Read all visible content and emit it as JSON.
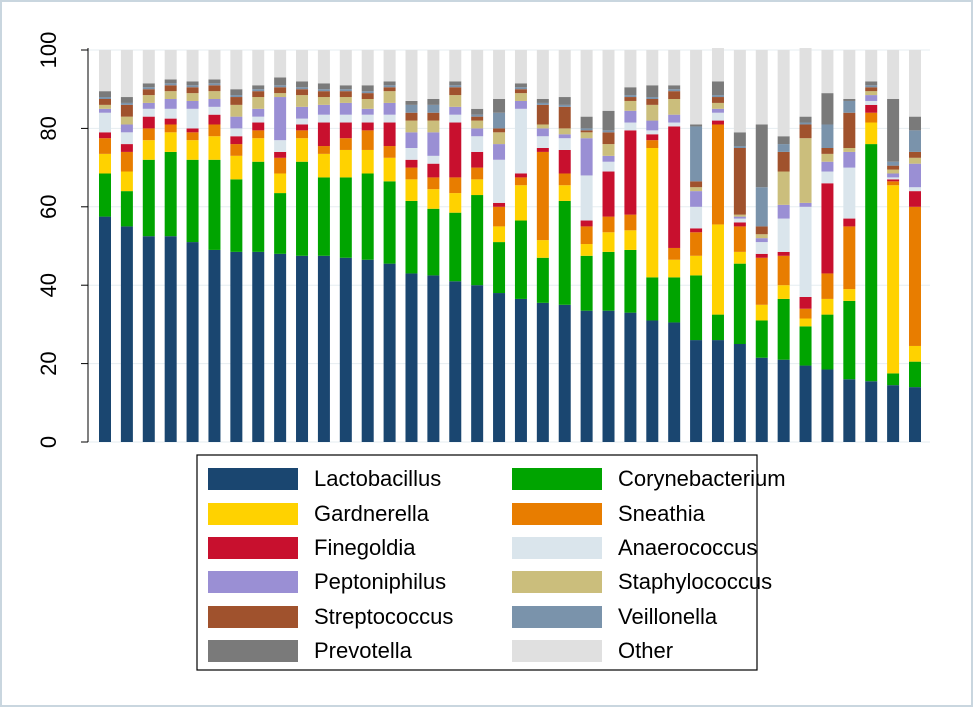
{
  "chart_data": {
    "type": "stacked_bar",
    "ylim": [
      0,
      100
    ],
    "yticks": [
      0,
      20,
      40,
      60,
      80,
      100
    ],
    "grid": true,
    "categories": [
      null,
      null,
      null,
      null,
      null,
      null,
      null,
      null,
      null,
      null,
      null,
      null,
      null,
      null,
      null,
      null,
      null,
      null,
      null,
      null,
      null,
      null,
      null,
      null,
      null,
      null,
      null,
      null,
      null,
      null,
      null,
      null,
      null,
      null,
      null,
      null,
      null,
      null
    ],
    "series": [
      {
        "name": "Lactobacillus",
        "color": "#1a4670",
        "values": [
          57.5,
          55,
          52.5,
          52.5,
          51,
          49,
          48.5,
          48.5,
          48,
          47.5,
          47.5,
          47,
          46.5,
          45.5,
          43,
          42.5,
          41,
          40,
          38,
          36.5,
          35.5,
          35,
          33.5,
          33.5,
          33,
          31,
          30.5,
          26,
          26,
          25,
          21.5,
          21,
          19.5,
          18.5,
          16,
          15.5,
          14.5,
          14
        ]
      },
      {
        "name": "Corynebacterium",
        "color": "#00a400",
        "values": [
          11,
          9,
          19.5,
          21.5,
          21,
          23,
          18.5,
          23,
          15.5,
          24,
          20,
          20.5,
          22,
          21,
          18.5,
          17,
          17.5,
          23,
          13,
          20,
          11.5,
          26.5,
          14,
          15,
          16,
          11,
          11.5,
          16.5,
          6.5,
          20.5,
          9.5,
          15.5,
          10,
          14,
          20,
          60.5,
          3,
          6.5
        ]
      },
      {
        "name": "Gardnerella",
        "color": "#ffd200",
        "values": [
          5,
          5,
          5,
          5,
          5,
          6,
          6,
          6,
          5,
          6,
          6,
          7,
          6,
          6,
          5.5,
          5,
          5,
          4,
          4,
          9,
          4.5,
          4,
          3,
          5,
          5,
          33,
          4.5,
          5,
          23,
          3,
          4,
          3.5,
          2,
          4,
          3,
          5.5,
          48,
          4
        ]
      },
      {
        "name": "Sneathia",
        "color": "#e87d00",
        "values": [
          4,
          5,
          3,
          2,
          2,
          3,
          3,
          2,
          4,
          2,
          2,
          3,
          5,
          3,
          3,
          3,
          4,
          3,
          5,
          2,
          22.5,
          3,
          4.5,
          4,
          4,
          2,
          3,
          6,
          25.5,
          6.5,
          12,
          7.5,
          2.5,
          6.5,
          16,
          2.5,
          1,
          35.5
        ]
      },
      {
        "name": "Finegoldia",
        "color": "#c8102e",
        "values": [
          1.5,
          2,
          3,
          1.5,
          1,
          2.5,
          2,
          2,
          1.5,
          1.5,
          6,
          4,
          2,
          6,
          2,
          3.5,
          14,
          4,
          1,
          1,
          1,
          6,
          1.5,
          11.5,
          21.5,
          1.5,
          31,
          1,
          1,
          1,
          1,
          1,
          3,
          23,
          2,
          2,
          0.5,
          4
        ]
      },
      {
        "name": "Anaerococcus",
        "color": "#dae5ec",
        "values": [
          5,
          3,
          2,
          2.5,
          5,
          2,
          2,
          1.5,
          3,
          1.5,
          2,
          2,
          2,
          2,
          3,
          2,
          2,
          4,
          11,
          16.5,
          3,
          3,
          11.5,
          2.5,
          2,
          1,
          1,
          5.5,
          2,
          1,
          3,
          8.5,
          23,
          3,
          13,
          1,
          0.5,
          1
        ]
      },
      {
        "name": "Peptoniphilus",
        "color": "#9a8fd4",
        "values": [
          1,
          2,
          1.5,
          2.5,
          2,
          2,
          3,
          2,
          11,
          3,
          2.5,
          3,
          1.5,
          3,
          4,
          6,
          2,
          2,
          4,
          2,
          2,
          1,
          9.5,
          1.5,
          3,
          2.5,
          2,
          4,
          1,
          0.5,
          1,
          3.5,
          1,
          2.5,
          4,
          1.5,
          1,
          6
        ]
      },
      {
        "name": "Staphylococcus",
        "color": "#cbbe7c",
        "values": [
          1,
          2,
          2,
          2,
          2,
          2,
          3,
          3,
          1,
          3,
          2,
          1.5,
          2.5,
          3,
          3,
          3,
          3,
          2,
          3,
          2,
          1,
          1.5,
          1.5,
          3,
          2.5,
          4,
          4,
          1,
          1.5,
          0.5,
          1,
          8.5,
          16.5,
          2,
          1,
          1,
          1,
          1.5
        ]
      },
      {
        "name": "Streptococcus",
        "color": "#a0522d",
        "values": [
          1.5,
          3,
          1.5,
          1.5,
          1.5,
          1.5,
          2,
          1.5,
          1.5,
          1.5,
          1.5,
          1.5,
          1.5,
          1,
          2,
          2,
          2,
          1,
          1,
          1,
          5,
          5.5,
          0.5,
          3,
          1,
          1.5,
          2,
          1.5,
          1.5,
          17,
          2,
          5,
          3.5,
          1.5,
          9,
          1,
          1,
          1.5
        ]
      },
      {
        "name": "Veillonella",
        "color": "#7a93ab",
        "values": [
          0.5,
          0.5,
          0.5,
          0.5,
          0.5,
          0.5,
          0.5,
          0.5,
          0.5,
          0.5,
          0.5,
          0.5,
          0.5,
          0.5,
          2,
          2,
          0.5,
          0.5,
          4,
          0.5,
          0.5,
          0.5,
          0.5,
          0.5,
          0.5,
          0.5,
          0.5,
          14,
          0.5,
          0.5,
          10,
          2,
          0.5,
          6,
          3,
          0.5,
          1,
          5.5
        ]
      },
      {
        "name": "Prevotella",
        "color": "#7a7a7a",
        "values": [
          1.5,
          1.5,
          1,
          1,
          1,
          1,
          1.5,
          1,
          2,
          1.5,
          1.5,
          1,
          1.5,
          1,
          1,
          1.5,
          1,
          1.5,
          3.5,
          1,
          1,
          2,
          3,
          5,
          2,
          3,
          1,
          0.5,
          3.5,
          3.5,
          16,
          2,
          1.5,
          8,
          0.5,
          1,
          16,
          3.5
        ]
      },
      {
        "name": "Other",
        "color": "#e0e0e0",
        "values": [
          10.5,
          12,
          8.5,
          7.5,
          8,
          7.5,
          10,
          9,
          7,
          8,
          8.5,
          9,
          9,
          8,
          13,
          12.5,
          8,
          15,
          12.5,
          8.5,
          12.5,
          12,
          17,
          15.5,
          9.5,
          9,
          9,
          19,
          8.5,
          21,
          19,
          22,
          17.5,
          11,
          12.5,
          8,
          12.5,
          17
        ]
      }
    ]
  }
}
